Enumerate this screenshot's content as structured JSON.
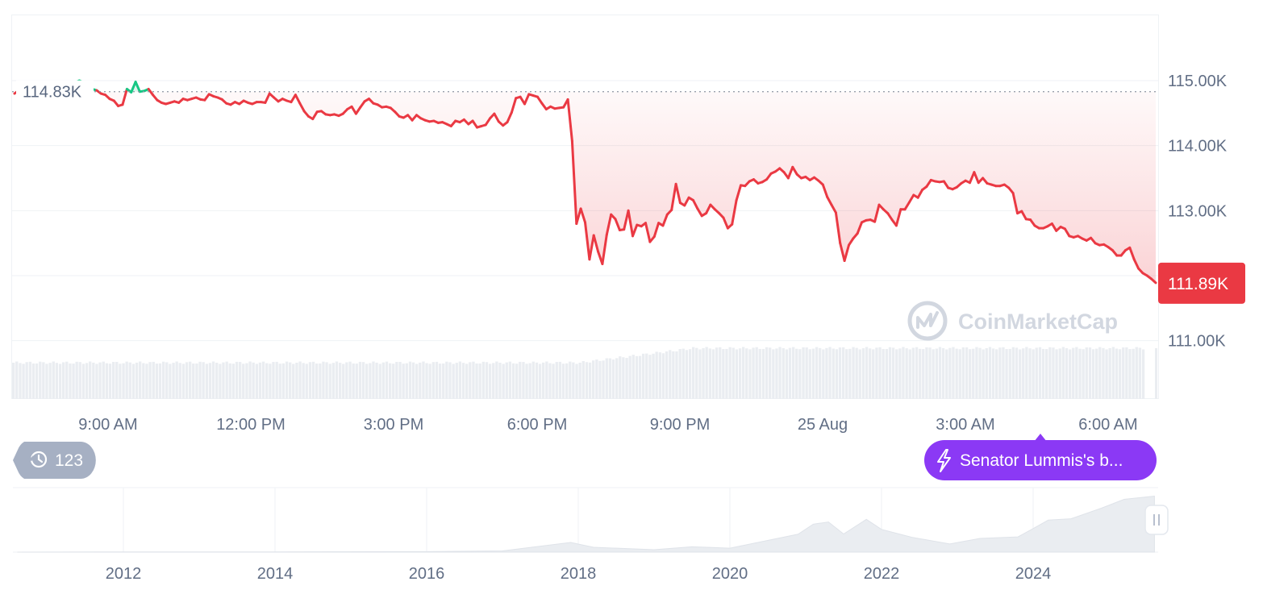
{
  "chart_data": [
    {
      "type": "line",
      "series": [
        {
          "values": [
            114.8,
            114.85,
            114.82,
            114.85,
            114.86,
            114.79,
            114.82,
            114.85,
            114.87,
            114.84,
            114.73,
            114.76,
            114.8,
            114.88,
            114.97,
            115.0,
            114.97,
            114.91,
            114.87,
            114.85,
            114.8,
            114.78,
            114.72,
            114.69,
            114.61,
            114.63,
            114.87,
            114.82,
            114.98,
            114.83,
            114.84,
            114.87,
            114.78,
            114.7,
            114.66,
            114.64,
            114.66,
            114.68,
            114.66,
            114.72,
            114.7,
            114.72,
            114.74,
            114.71,
            114.7,
            114.79,
            114.76,
            114.74,
            114.71,
            114.65,
            114.63,
            114.67,
            114.64,
            114.69,
            114.66,
            114.64,
            114.67,
            114.67,
            114.66,
            114.8,
            114.74,
            114.68,
            114.72,
            114.69,
            114.67,
            114.78,
            114.65,
            114.53,
            114.45,
            114.41,
            114.52,
            114.53,
            114.48,
            114.47,
            114.48,
            114.46,
            114.49,
            114.56,
            114.6,
            114.49,
            114.59,
            114.68,
            114.72,
            114.65,
            114.63,
            114.59,
            114.6,
            114.58,
            114.52,
            114.45,
            114.43,
            114.47,
            114.39,
            114.47,
            114.42,
            114.39,
            114.37,
            114.38,
            114.35,
            114.36,
            114.33,
            114.3,
            114.38,
            114.36,
            114.4,
            114.33,
            114.38,
            114.28,
            114.3,
            114.32,
            114.42,
            114.49,
            114.37,
            114.31,
            114.36,
            114.51,
            114.73,
            114.75,
            114.64,
            114.79,
            114.77,
            114.75,
            114.65,
            114.56,
            114.6,
            114.57,
            114.58,
            114.59,
            114.71,
            114.07,
            112.8,
            113.03,
            112.82,
            112.25,
            112.62,
            112.37,
            112.18,
            112.63,
            112.94,
            112.87,
            112.7,
            112.71,
            113.0,
            112.61,
            112.78,
            112.76,
            112.81,
            112.52,
            112.6,
            112.81,
            112.77,
            112.94,
            113.01,
            113.41,
            113.12,
            113.08,
            113.2,
            113.16,
            113.03,
            112.92,
            112.96,
            113.09,
            113.02,
            112.96,
            112.89,
            112.73,
            112.79,
            113.16,
            113.39,
            113.38,
            113.45,
            113.48,
            113.42,
            113.44,
            113.48,
            113.57,
            113.6,
            113.65,
            113.59,
            113.5,
            113.67,
            113.56,
            113.5,
            113.52,
            113.47,
            113.51,
            113.46,
            113.4,
            113.21,
            113.09,
            112.97,
            112.5,
            112.23,
            112.47,
            112.57,
            112.65,
            112.82,
            112.85,
            112.86,
            112.83,
            113.09,
            113.02,
            112.96,
            112.86,
            112.77,
            113.02,
            113.02,
            113.13,
            113.24,
            113.2,
            113.32,
            113.37,
            113.47,
            113.45,
            113.44,
            113.45,
            113.35,
            113.33,
            113.36,
            113.42,
            113.46,
            113.43,
            113.59,
            113.43,
            113.5,
            113.42,
            113.4,
            113.38,
            113.38,
            113.4,
            113.35,
            113.27,
            112.96,
            112.99,
            112.87,
            112.86,
            112.77,
            112.73,
            112.73,
            112.76,
            112.8,
            112.69,
            112.75,
            112.72,
            112.61,
            112.59,
            112.61,
            112.57,
            112.54,
            112.58,
            112.5,
            112.47,
            112.48,
            112.44,
            112.39,
            112.31,
            112.31,
            112.39,
            112.43,
            112.25,
            112.11,
            112.04,
            112.0,
            111.95,
            111.89
          ]
        }
      ],
      "ylim": [
        110.8,
        115.7
      ],
      "yticks": [
        "115.00K",
        "114.00K",
        "113.00K",
        "111.00K"
      ],
      "xticks": [
        "9:00 AM",
        "12:00 PM",
        "3:00 PM",
        "6:00 PM",
        "9:00 PM",
        "25 Aug",
        "3:00 AM",
        "6:00 AM"
      ],
      "reference_value": 114.83,
      "reference_label": "114.83K",
      "current_value": 111.89,
      "current_label": "111.89K",
      "up_color": "#16c784",
      "down_color": "#ea3943",
      "grid": true
    },
    {
      "type": "area",
      "x": [
        2010.6,
        2012,
        2014,
        2016,
        2017,
        2017.9,
        2018.2,
        2019,
        2019.5,
        2020,
        2020.9,
        2021.1,
        2021.3,
        2021.5,
        2021.8,
        2022,
        2022.4,
        2022.9,
        2023.3,
        2023.8,
        2024.0,
        2024.2,
        2024.5,
        2024.9,
        2025.2,
        2025.6
      ],
      "values": [
        0.0,
        0.01,
        0.01,
        0.02,
        0.05,
        0.4,
        0.2,
        0.1,
        0.22,
        0.2,
        0.7,
        1.2,
        1.2,
        0.8,
        1.3,
        1.0,
        0.55,
        0.4,
        0.5,
        0.7,
        0.9,
        1.4,
        1.3,
        1.9,
        2.1,
        2.4
      ],
      "xticks": [
        "2012",
        "2014",
        "2016",
        "2018",
        "2020",
        "2022",
        "2024"
      ]
    }
  ],
  "ui": {
    "watermark": "CoinMarketCap",
    "history_count": "123",
    "news_pill": "Senator Lummis's b...",
    "colors": {
      "news_pill": "#8b39f5",
      "history_badge": "#a6b0c3"
    },
    "icons": {
      "history": "history-clock-icon",
      "news": "lightning-bolt-icon",
      "logo": "coinmarketcap-logo-icon",
      "drag": "drag-handle-icon"
    }
  }
}
